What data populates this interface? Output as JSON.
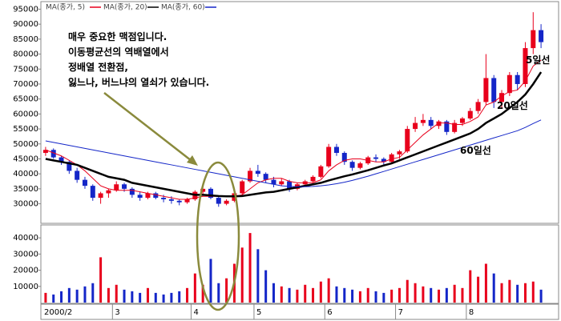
{
  "chart_data": [
    {
      "type": "candlestick",
      "open": [
        47000,
        48000,
        45500,
        44000,
        41000,
        38000,
        36000,
        32000,
        33500,
        34500,
        36500,
        35000,
        33000,
        32000,
        33500,
        32000,
        31500,
        31000,
        30500,
        31500,
        34000,
        35000,
        32000,
        30000,
        31000,
        33500,
        37500,
        41000,
        40000,
        38000,
        36500,
        37500,
        35000,
        36500,
        37500,
        39000,
        42500,
        49000,
        47000,
        44000,
        42000,
        43500,
        45500,
        45000,
        44000,
        46500,
        47500,
        55000,
        57000,
        58000,
        56000,
        57500,
        54000,
        57000,
        58500,
        61000,
        64000,
        72000,
        64000,
        67000,
        73000,
        70000,
        82000,
        88000
      ],
      "high": [
        49000,
        48500,
        46000,
        44500,
        42000,
        39000,
        36500,
        34000,
        35000,
        37500,
        37000,
        35500,
        34000,
        34000,
        34000,
        33000,
        32500,
        31500,
        32000,
        34500,
        36000,
        35500,
        32500,
        31500,
        34000,
        38000,
        42000,
        43000,
        40500,
        39000,
        38500,
        38000,
        37000,
        38000,
        39500,
        43000,
        50000,
        50000,
        47500,
        44500,
        44000,
        46000,
        46500,
        45500,
        47000,
        48000,
        56000,
        59000,
        60000,
        59000,
        58000,
        58000,
        58000,
        59000,
        62000,
        65000,
        80000,
        73000,
        68000,
        74000,
        74000,
        84000,
        94000,
        90000
      ],
      "low": [
        46000,
        45000,
        43000,
        40000,
        37000,
        35000,
        31000,
        30000,
        32000,
        34000,
        34000,
        32000,
        31000,
        31500,
        31500,
        30500,
        30000,
        29500,
        30000,
        31000,
        33000,
        31500,
        29000,
        29500,
        30500,
        33000,
        37000,
        39000,
        37000,
        35500,
        36000,
        34000,
        34500,
        36000,
        37000,
        38500,
        42000,
        46000,
        43000,
        41000,
        41500,
        43000,
        44000,
        43000,
        43500,
        45000,
        47000,
        54000,
        56000,
        55000,
        55000,
        53000,
        53500,
        56000,
        58000,
        60000,
        63000,
        62000,
        62000,
        66000,
        68000,
        69000,
        80000,
        82000
      ],
      "close": [
        48000,
        45500,
        44000,
        41000,
        38000,
        36000,
        32000,
        33500,
        34500,
        36500,
        35000,
        33000,
        32000,
        33500,
        32000,
        31500,
        31000,
        30500,
        31500,
        34000,
        35000,
        32000,
        30000,
        31000,
        33500,
        37500,
        41000,
        40000,
        38000,
        36500,
        37500,
        35000,
        36500,
        37500,
        39000,
        42500,
        49000,
        47000,
        44000,
        42000,
        43500,
        45500,
        45000,
        44000,
        46500,
        47500,
        55000,
        57000,
        58000,
        56000,
        57500,
        54000,
        57000,
        58500,
        61000,
        64000,
        72000,
        64000,
        67000,
        73000,
        70000,
        82000,
        88000,
        84000
      ],
      "up_color": "#e8001c",
      "down_color": "#1426c8",
      "series": [
        {
          "name": "MA(종가, 5)",
          "color": "#e8001c",
          "values": [
            48000,
            47000,
            46000,
            44500,
            43000,
            41000,
            38500,
            36000,
            35000,
            34500,
            34500,
            34500,
            34000,
            33500,
            33000,
            32500,
            32000,
            31500,
            31500,
            32000,
            32500,
            32500,
            32500,
            32500,
            32500,
            33000,
            35000,
            37000,
            38000,
            38500,
            38500,
            37500,
            37000,
            37000,
            37000,
            38000,
            41000,
            43000,
            44500,
            45000,
            45000,
            44500,
            44000,
            44000,
            45000,
            45500,
            48000,
            50500,
            53000,
            55000,
            57000,
            57000,
            56500,
            56500,
            57500,
            59000,
            63000,
            64000,
            66000,
            67500,
            68000,
            71000,
            76000,
            78000
          ]
        },
        {
          "name": "MA(종가, 20)",
          "color": "#000000",
          "values": [
            45000,
            44500,
            44000,
            43500,
            43000,
            42000,
            41000,
            40000,
            39000,
            38500,
            38000,
            37000,
            36500,
            36000,
            35500,
            35000,
            34500,
            34000,
            33500,
            33000,
            33000,
            32800,
            32600,
            32500,
            32500,
            32600,
            33000,
            33400,
            33800,
            34000,
            34500,
            35000,
            35500,
            36000,
            36500,
            37000,
            37800,
            38500,
            39200,
            39800,
            40500,
            41200,
            42000,
            42800,
            43500,
            44500,
            45500,
            46500,
            47500,
            48500,
            49500,
            50500,
            51500,
            52500,
            53500,
            55000,
            57000,
            58500,
            60000,
            62000,
            64000,
            66500,
            70000,
            74000
          ]
        },
        {
          "name": "MA(종가, 60)",
          "color": "#1426c8",
          "values": [
            51000,
            50500,
            50000,
            49500,
            49000,
            48500,
            48000,
            47500,
            47000,
            46500,
            46000,
            45500,
            45000,
            44500,
            44000,
            43500,
            43000,
            42500,
            42000,
            41500,
            41000,
            40500,
            40000,
            39500,
            39000,
            38500,
            38000,
            37500,
            37000,
            36500,
            36000,
            35800,
            35700,
            35700,
            35800,
            36000,
            36300,
            36700,
            37200,
            37800,
            38500,
            39200,
            40000,
            40800,
            41600,
            42400,
            43200,
            44000,
            44800,
            45600,
            46400,
            47200,
            48000,
            48800,
            49600,
            50400,
            51200,
            52000,
            52800,
            53600,
            54400,
            55500,
            56800,
            58000
          ]
        }
      ],
      "ylim": [
        24000,
        97000
      ],
      "yticks": [
        30000,
        35000,
        40000,
        45000,
        50000,
        55000,
        60000,
        65000,
        70000,
        75000,
        80000,
        85000,
        90000,
        95000
      ],
      "annotations": [
        "매우 중요한 맥점입니다.",
        "이동평균선의 역배열에서",
        "정배열 전환점,",
        "잃느나, 버느냐의 열쇠가 있습니다."
      ],
      "line_labels": [
        "5일선",
        "20일선",
        "60일선"
      ]
    },
    {
      "type": "bar",
      "categories": [
        "2000/2",
        null,
        null,
        null,
        null,
        null,
        null,
        null,
        null,
        "3",
        null,
        null,
        null,
        null,
        null,
        null,
        null,
        null,
        null,
        "4",
        null,
        null,
        null,
        null,
        null,
        null,
        null,
        "5",
        null,
        null,
        null,
        null,
        null,
        null,
        null,
        null,
        "6",
        null,
        null,
        null,
        null,
        null,
        null,
        null,
        null,
        "7",
        null,
        null,
        null,
        null,
        null,
        null,
        null,
        null,
        "8",
        null,
        null,
        null,
        null,
        null,
        null,
        null,
        null,
        null
      ],
      "values": [
        6000,
        5000,
        7000,
        9000,
        8000,
        10000,
        12000,
        28000,
        9000,
        11000,
        8000,
        7000,
        6000,
        9000,
        6000,
        5000,
        6000,
        7000,
        9000,
        18000,
        11000,
        27000,
        12000,
        15000,
        24000,
        34000,
        43000,
        33000,
        20000,
        12000,
        10000,
        9000,
        8000,
        11000,
        9000,
        13000,
        15000,
        10000,
        9000,
        8000,
        7000,
        9000,
        7000,
        6000,
        8000,
        9000,
        14000,
        12000,
        10000,
        9000,
        8000,
        9000,
        11000,
        9000,
        20000,
        16000,
        24000,
        18000,
        12000,
        14000,
        11000,
        12000,
        13000,
        8000
      ],
      "ylim": [
        0,
        48000
      ],
      "yticks": [
        10000,
        20000,
        30000,
        40000
      ]
    }
  ]
}
